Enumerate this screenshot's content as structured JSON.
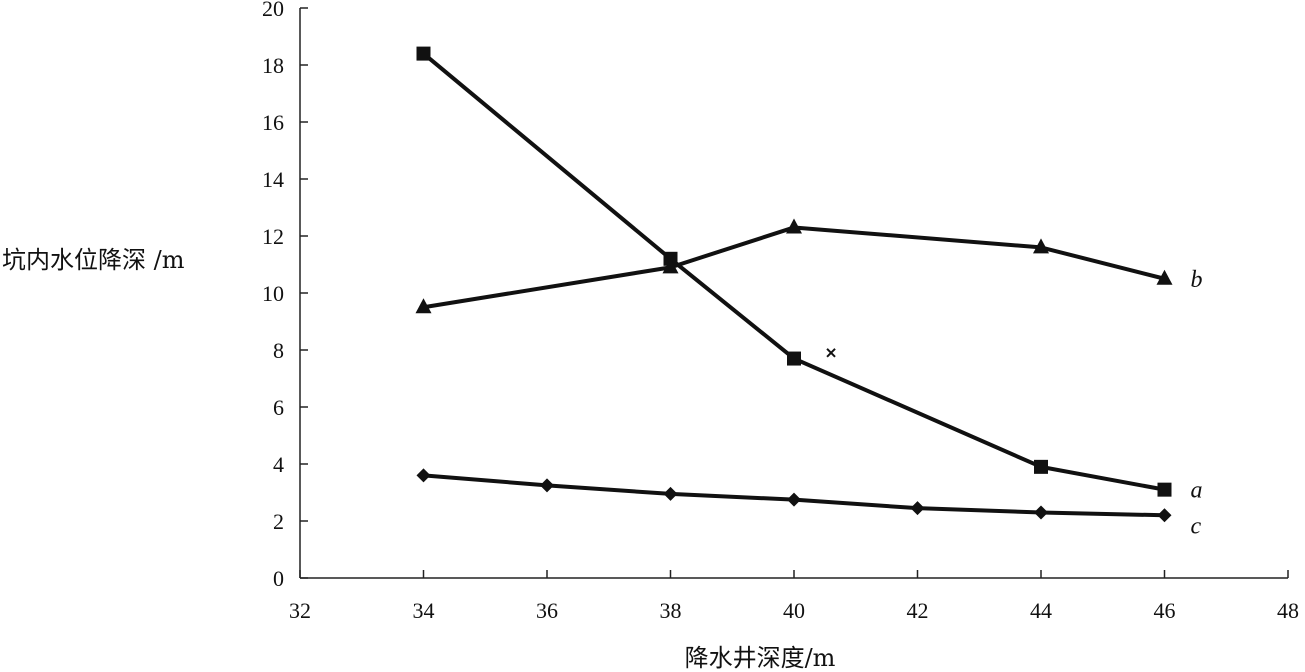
{
  "chart_data": {
    "type": "line",
    "title": "",
    "xlabel": "降水井深度/m",
    "ylabel": "坑内水位降深 /m",
    "xlim": [
      32,
      48
    ],
    "ylim": [
      0,
      20
    ],
    "x_ticks": [
      "32",
      "34",
      "36",
      "38",
      "40",
      "42",
      "44",
      "46",
      "48"
    ],
    "y_ticks": [
      "0",
      "2",
      "4",
      "6",
      "8",
      "10",
      "12",
      "14",
      "16",
      "18",
      "20"
    ],
    "grid": false,
    "legend": "none",
    "series": [
      {
        "name": "a",
        "marker": "square",
        "x": [
          34,
          38,
          40,
          44,
          46
        ],
        "y": [
          18.4,
          11.2,
          7.7,
          3.9,
          3.1
        ]
      },
      {
        "name": "b",
        "marker": "triangle",
        "x": [
          34,
          38,
          40,
          44,
          46
        ],
        "y": [
          9.5,
          10.9,
          12.3,
          11.6,
          10.5
        ]
      },
      {
        "name": "c",
        "marker": "diamond",
        "x": [
          34,
          36,
          38,
          40,
          42,
          44,
          46
        ],
        "y": [
          3.6,
          3.25,
          2.95,
          2.75,
          2.45,
          2.3,
          2.2
        ]
      }
    ],
    "annotations": [
      {
        "marker": "cross",
        "x": 40.6,
        "y": 7.9
      }
    ]
  }
}
